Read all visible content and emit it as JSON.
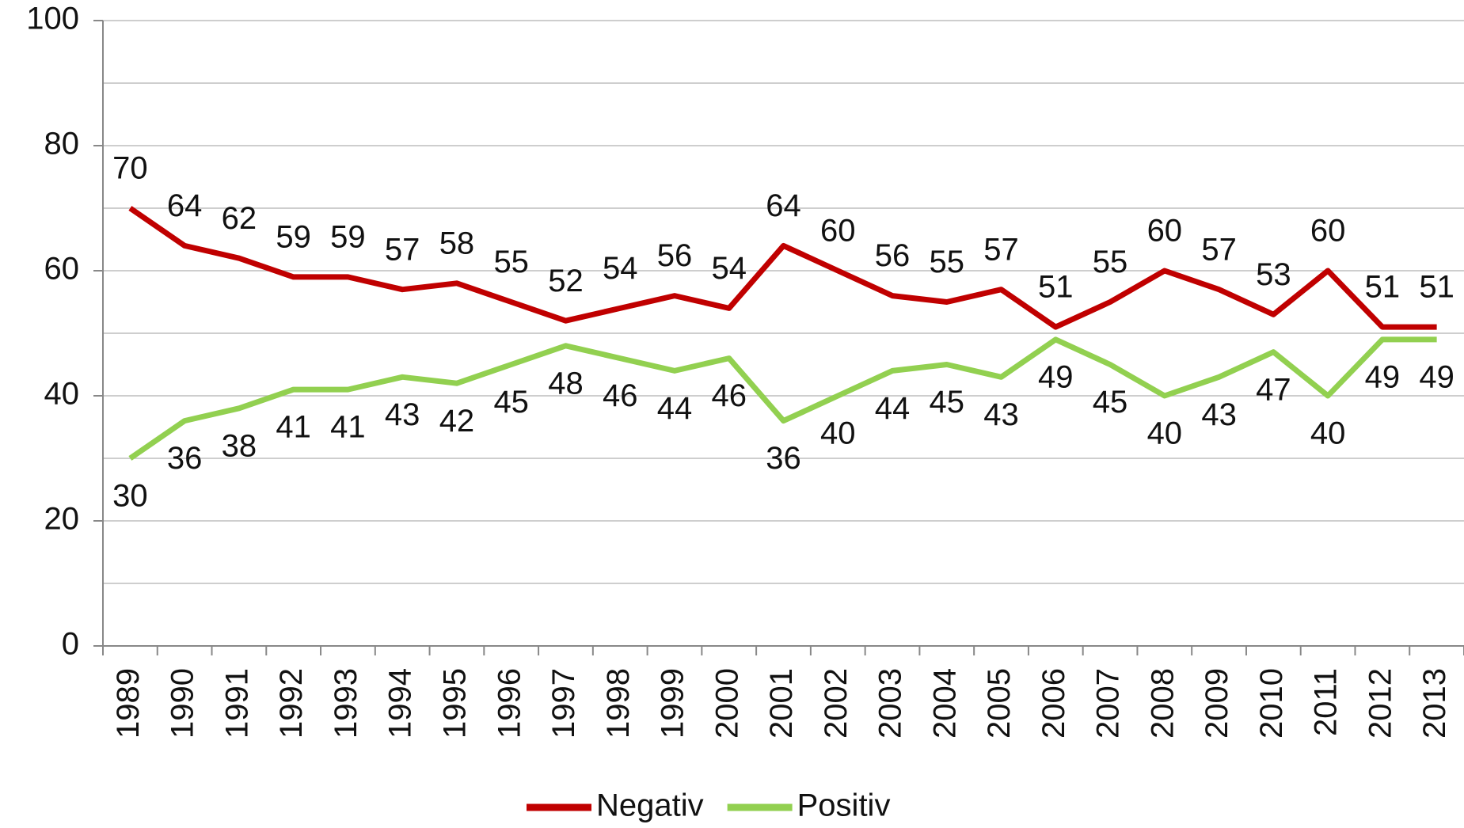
{
  "chart_data": {
    "type": "line",
    "categories": [
      "1989",
      "1990",
      "1991",
      "1992",
      "1993",
      "1994",
      "1995",
      "1996",
      "1997",
      "1998",
      "1999",
      "2000",
      "2001",
      "2002",
      "2003",
      "2004",
      "2005",
      "2006",
      "2007",
      "2008",
      "2009",
      "2010",
      "2011",
      "2012",
      "2013"
    ],
    "series": [
      {
        "name": "Negativ",
        "color": "#c00000",
        "values": [
          70,
          64,
          62,
          59,
          59,
          57,
          58,
          55,
          52,
          54,
          56,
          54,
          64,
          60,
          56,
          55,
          57,
          51,
          55,
          60,
          57,
          53,
          60,
          51,
          51
        ]
      },
      {
        "name": "Positiv",
        "color": "#92d050",
        "values": [
          30,
          36,
          38,
          41,
          41,
          43,
          42,
          45,
          48,
          46,
          44,
          46,
          36,
          40,
          44,
          45,
          43,
          49,
          45,
          40,
          43,
          47,
          40,
          49,
          49
        ]
      }
    ],
    "ylim": [
      0,
      100
    ],
    "yticks": [
      0,
      20,
      40,
      60,
      80,
      100
    ],
    "y_minor_gridlines": [
      10,
      30,
      50,
      70,
      90
    ],
    "grid": true,
    "legend": "bottom"
  }
}
